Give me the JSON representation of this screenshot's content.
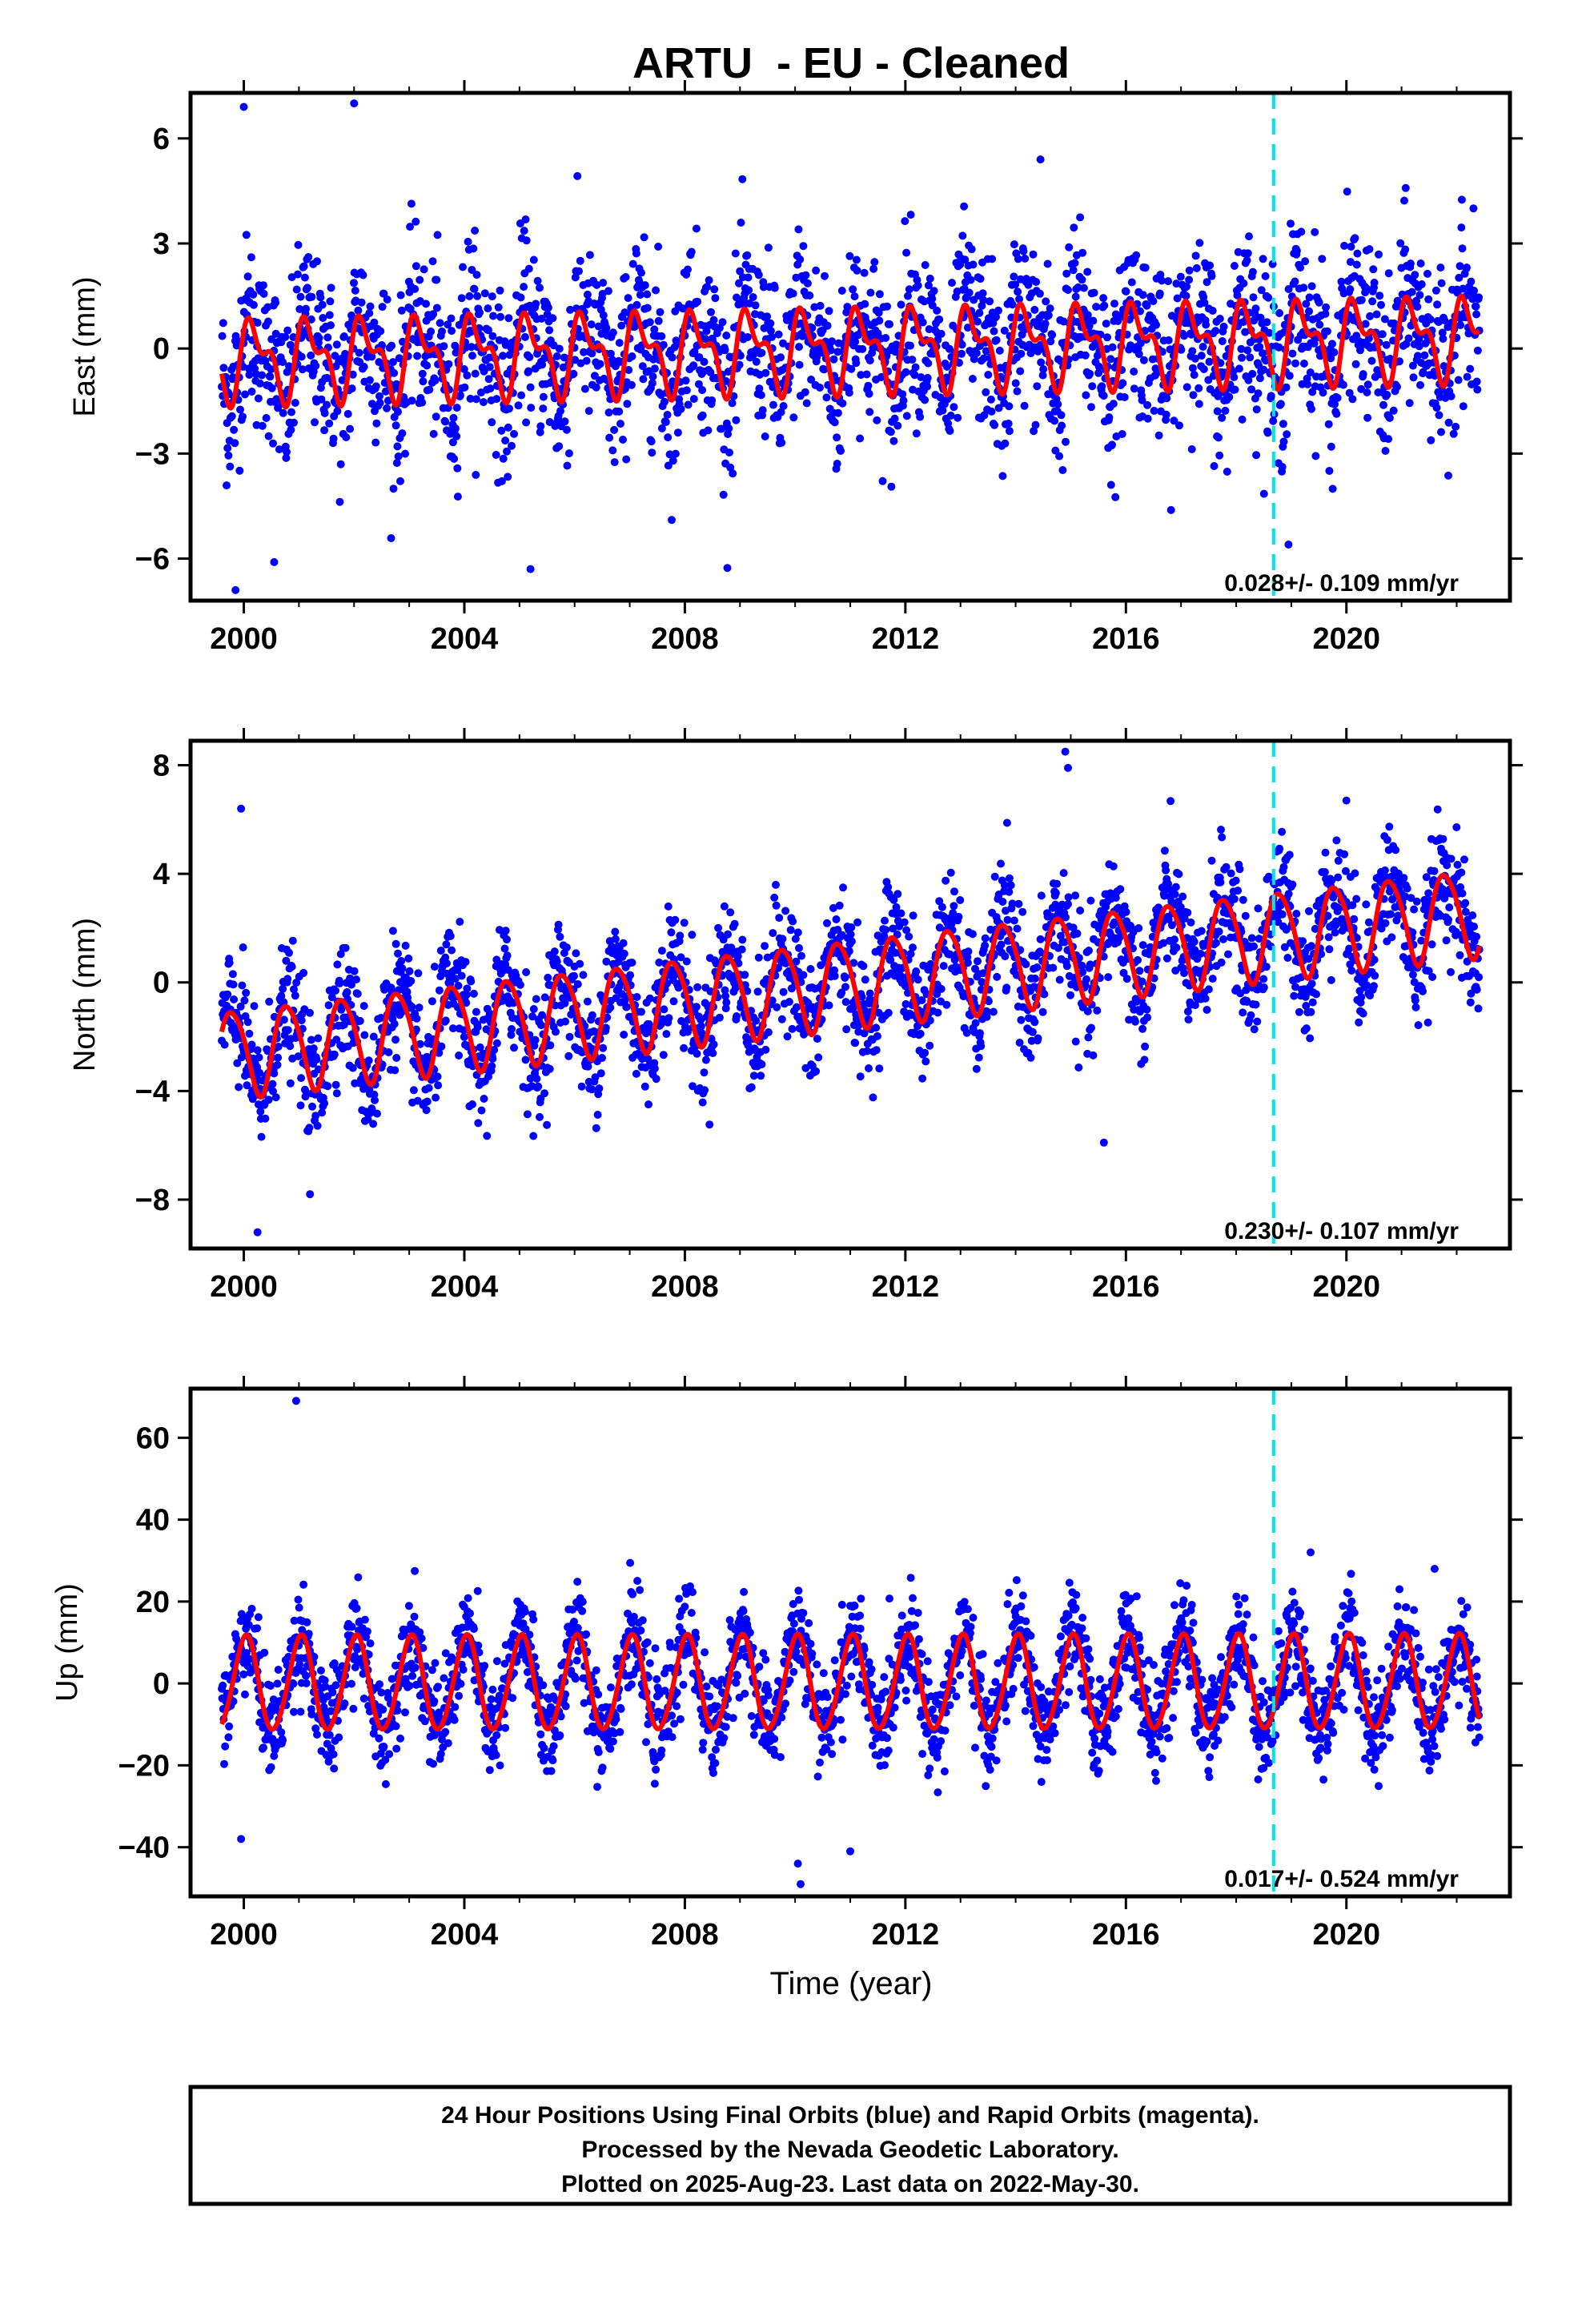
{
  "colors": {
    "final_orbit_points": "#0000ff",
    "model_curve": "#ff0000",
    "equipment_change": "#00e5e5",
    "frame": "#000000"
  },
  "figure": {
    "title": "ARTU  - EU - Cleaned",
    "xlabel": "Time (year)",
    "footer_lines": [
      "24 Hour Positions Using Final Orbits (blue) and Rapid Orbits (magenta).",
      "Processed by the Nevada Geodetic Laboratory.",
      "Plotted on 2025-Aug-23. Last data on 2022-May-30."
    ]
  },
  "chart_data": [
    {
      "type": "scatter",
      "panel": "east",
      "ylabel": "East (mm)",
      "xlim": [
        1999.15,
        2022.85
      ],
      "ylim": [
        -7.2,
        7.3
      ],
      "xticks": [
        2000,
        2004,
        2008,
        2012,
        2016,
        2020
      ],
      "xtick_labels": [
        "2000",
        "2004",
        "2008",
        "2012",
        "2016",
        "2020"
      ],
      "yticks": [
        -6,
        -3,
        0,
        3,
        6
      ],
      "ytick_labels": [
        "−6",
        "−3",
        "0",
        "3",
        "6"
      ],
      "data_start": 1999.6,
      "data_end": 2022.41,
      "rate_label": "0.028+/- 0.109 mm/yr",
      "equipment_change_year": 2018.68,
      "model": {
        "rate": 0.028,
        "annual_amp": 0.95,
        "semiannual_amp": 0.55,
        "annual_phase": 0.35,
        "semiannual_phase": 1.1
      },
      "scatter_sigma": 1.2,
      "outliers": [
        [
          2000.0,
          6.9
        ],
        [
          1999.85,
          -6.9
        ],
        [
          2002.0,
          7.0
        ],
        [
          2000.55,
          -6.1
        ],
        [
          2005.2,
          -6.3
        ],
        [
          2018.95,
          -5.6
        ],
        [
          2014.45,
          5.4
        ]
      ]
    },
    {
      "type": "scatter",
      "panel": "north",
      "ylabel": "North (mm)",
      "xlim": [
        1999.15,
        2022.85
      ],
      "ylim": [
        -9.8,
        8.9
      ],
      "xticks": [
        2000,
        2004,
        2008,
        2012,
        2016,
        2020
      ],
      "xtick_labels": [
        "2000",
        "2004",
        "2008",
        "2012",
        "2016",
        "2020"
      ],
      "yticks": [
        -8,
        -4,
        0,
        4,
        8
      ],
      "ytick_labels": [
        "−8",
        "−4",
        "0",
        "4",
        "8"
      ],
      "data_start": 1999.6,
      "data_end": 2022.41,
      "rate_label": "0.230+/- 0.107 mm/yr",
      "equipment_change_year": 2018.68,
      "model": {
        "rate": 0.23,
        "annual_amp": 1.6,
        "semiannual_amp": 0.2,
        "annual_phase": 2.9,
        "semiannual_phase": 0.4
      },
      "scatter_sigma": 1.1,
      "outliers": [
        [
          2014.9,
          8.5
        ],
        [
          2014.95,
          7.9
        ],
        [
          2000.25,
          -9.2
        ],
        [
          2001.2,
          -7.8
        ],
        [
          2015.6,
          -5.9
        ],
        [
          1999.95,
          6.4
        ],
        [
          2020.0,
          6.7
        ]
      ]
    },
    {
      "type": "scatter",
      "panel": "up",
      "ylabel": "Up (mm)",
      "xlim": [
        1999.15,
        2022.85
      ],
      "ylim": [
        -52,
        72
      ],
      "xticks": [
        2000,
        2004,
        2008,
        2012,
        2016,
        2020
      ],
      "xtick_labels": [
        "2000",
        "2004",
        "2008",
        "2012",
        "2016",
        "2020"
      ],
      "yticks": [
        -40,
        -20,
        0,
        20,
        40,
        60
      ],
      "ytick_labels": [
        "−40",
        "−20",
        "0",
        "20",
        "40",
        "60"
      ],
      "data_start": 1999.6,
      "data_end": 2022.41,
      "rate_label": "0.017+/- 0.524 mm/yr",
      "equipment_change_year": 2018.68,
      "model": {
        "rate": 0.017,
        "annual_amp": 11.5,
        "semiannual_amp": 0.8,
        "annual_phase": 1.35,
        "semiannual_phase": 0.3
      },
      "scatter_sigma": 6.0,
      "outliers": [
        [
          2000.95,
          69
        ],
        [
          2010.1,
          -49
        ],
        [
          1999.95,
          -38
        ],
        [
          2010.05,
          -44
        ],
        [
          2019.35,
          32
        ],
        [
          2021.6,
          28
        ],
        [
          2011.0,
          -41
        ]
      ]
    }
  ]
}
